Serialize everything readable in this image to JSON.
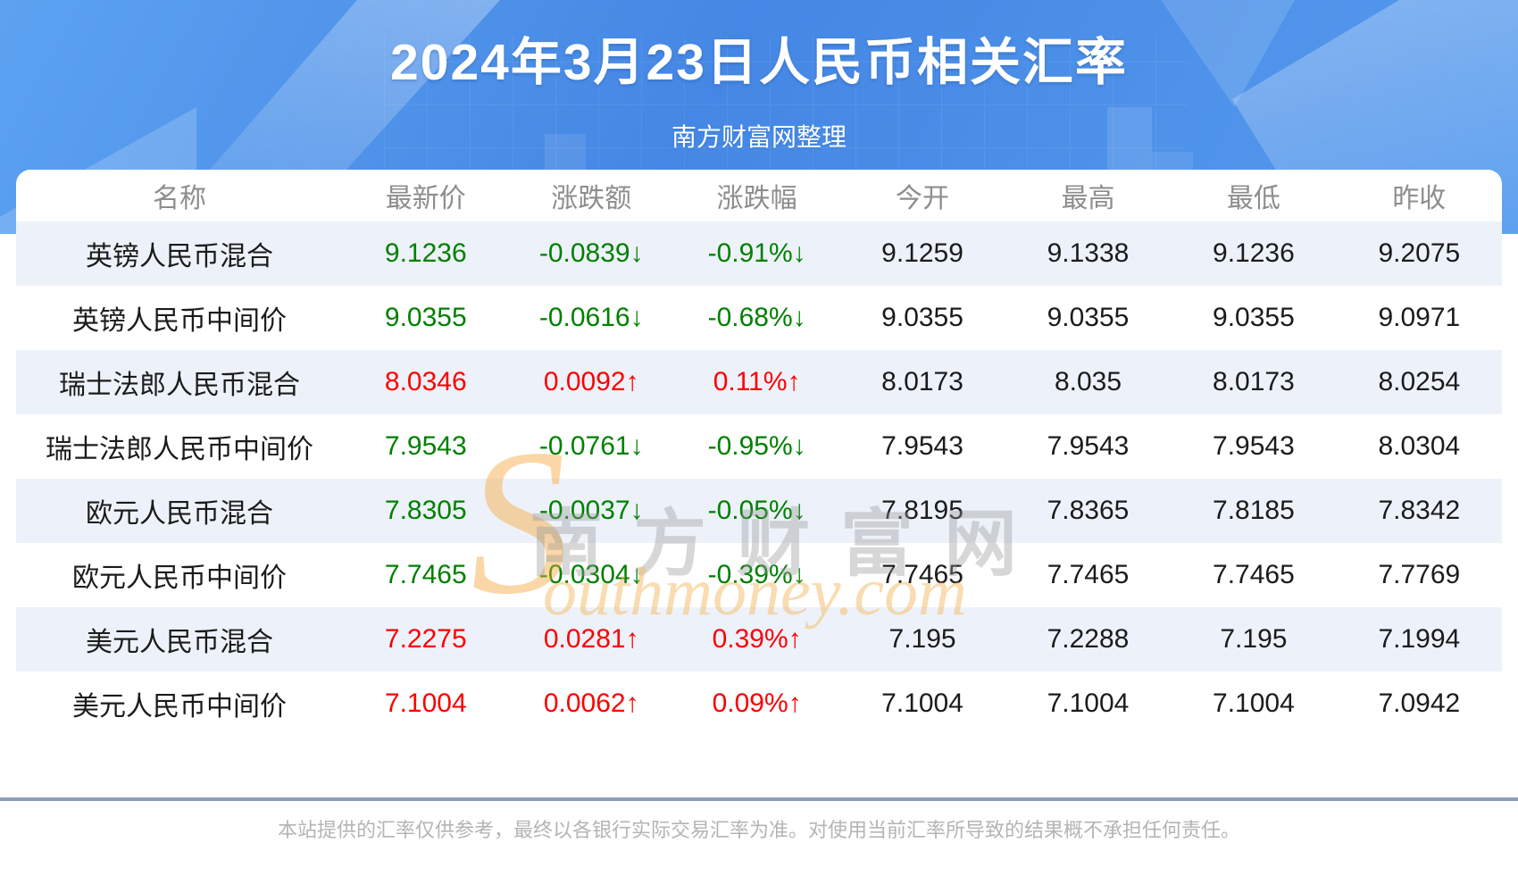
{
  "header": {
    "title": "2024年3月23日人民币相关汇率",
    "subtitle": "南方财富网整理"
  },
  "watermark": {
    "s": "S",
    "cn": "南方财富网",
    "en": "outhmoney.com"
  },
  "table": {
    "columns": [
      "名称",
      "最新价",
      "涨跌额",
      "涨跌幅",
      "今开",
      "最高",
      "最低",
      "昨收"
    ],
    "rows": [
      {
        "name": "英镑人民币混合",
        "latest": "9.1236",
        "change": "-0.0839↓",
        "pct": "-0.91%↓",
        "open": "9.1259",
        "high": "9.1338",
        "low": "9.1236",
        "prev": "9.2075",
        "trend": "down"
      },
      {
        "name": "英镑人民币中间价",
        "latest": "9.0355",
        "change": "-0.0616↓",
        "pct": "-0.68%↓",
        "open": "9.0355",
        "high": "9.0355",
        "low": "9.0355",
        "prev": "9.0971",
        "trend": "down"
      },
      {
        "name": "瑞士法郎人民币混合",
        "latest": "8.0346",
        "change": "0.0092↑",
        "pct": "0.11%↑",
        "open": "8.0173",
        "high": "8.035",
        "low": "8.0173",
        "prev": "8.0254",
        "trend": "up"
      },
      {
        "name": "瑞士法郎人民币中间价",
        "latest": "7.9543",
        "change": "-0.0761↓",
        "pct": "-0.95%↓",
        "open": "7.9543",
        "high": "7.9543",
        "low": "7.9543",
        "prev": "8.0304",
        "trend": "down"
      },
      {
        "name": "欧元人民币混合",
        "latest": "7.8305",
        "change": "-0.0037↓",
        "pct": "-0.05%↓",
        "open": "7.8195",
        "high": "7.8365",
        "low": "7.8185",
        "prev": "7.8342",
        "trend": "down"
      },
      {
        "name": "欧元人民币中间价",
        "latest": "7.7465",
        "change": "-0.0304↓",
        "pct": "-0.39%↓",
        "open": "7.7465",
        "high": "7.7465",
        "low": "7.7465",
        "prev": "7.7769",
        "trend": "down"
      },
      {
        "name": "美元人民币混合",
        "latest": "7.2275",
        "change": "0.0281↑",
        "pct": "0.39%↑",
        "open": "7.195",
        "high": "7.2288",
        "low": "7.195",
        "prev": "7.1994",
        "trend": "up"
      },
      {
        "name": "美元人民币中间价",
        "latest": "7.1004",
        "change": "0.0062↑",
        "pct": "0.09%↑",
        "open": "7.1004",
        "high": "7.1004",
        "low": "7.1004",
        "prev": "7.0942",
        "trend": "up"
      }
    ]
  },
  "footer": {
    "disclaimer": "本站提供的汇率仅供参考，最终以各银行实际交易汇率为准。对使用当前汇率所导致的结果概不承担任何责任。"
  },
  "colors": {
    "up": "#fc0000",
    "down": "#008000",
    "hero_blue": "#4587e4",
    "alt_row": "#edf2fa",
    "divider": "#8c9db8",
    "watermark_orange": "#f6a63c"
  }
}
